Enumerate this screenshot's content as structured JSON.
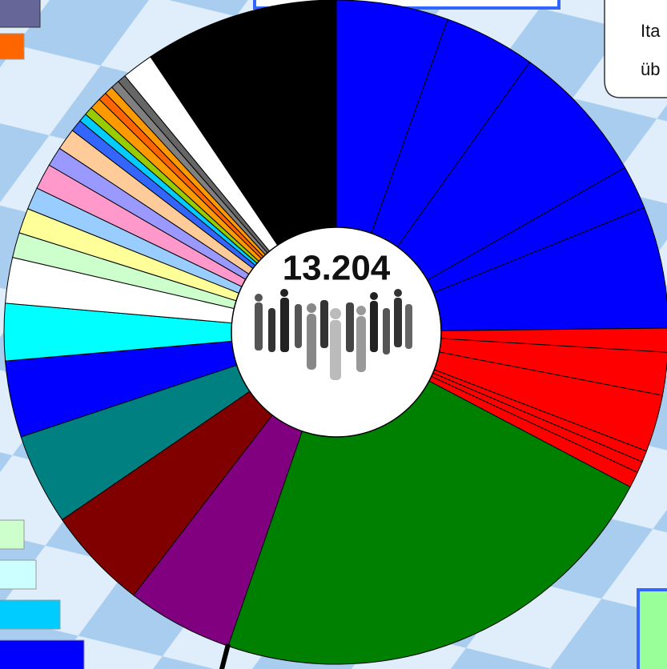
{
  "chart_data": {
    "type": "donut",
    "center_label": "13.204",
    "callout_lines": [
      "Ita",
      "üb"
    ],
    "values": [
      19.6,
      16,
      24.7,
      7.7,
      21.3,
      4.2,
      7.5,
      10,
      2,
      2,
      2.8,
      81.2,
      18.6,
      18,
      16,
      13.4,
      10,
      8,
      4.4,
      4.4,
      3.9,
      4.5,
      3.4,
      3.8,
      2.1,
      1.5,
      1.5,
      2,
      1.5,
      1.5,
      1.5,
      1.5,
      5.5,
      34
    ],
    "colors": [
      "#0000ff",
      "#0000ff",
      "#0000ff",
      "#0000ff",
      "#0000ff",
      "#ff0000",
      "#ff0000",
      "#ff0000",
      "#ff0000",
      "#ff0000",
      "#ff0000",
      "#008000",
      "#800080",
      "#800000",
      "#008080",
      "#0000ff",
      "#00ffff",
      "#ffffff",
      "#ccffcc",
      "#ffff99",
      "#99ccff",
      "#ff99cc",
      "#9999ff",
      "#ffcc99",
      "#3366ff",
      "#00ccff",
      "#99cc00",
      "#ff9900",
      "#ff6600",
      "#ff9900",
      "#808080",
      "#666666",
      "#ffffff",
      "#000000"
    ]
  }
}
